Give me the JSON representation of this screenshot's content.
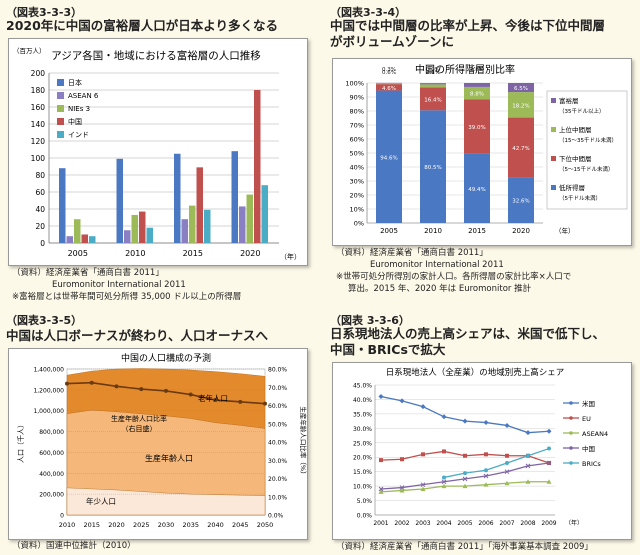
{
  "panels": {
    "p1": {
      "label": "（図表3-3-3）",
      "title": "2020年に中国の富裕層人口が日本より多くなる",
      "source": "（資料）経済産業省「通商白書 2011」",
      "source2": "Euromonitor International 2011",
      "note": "※富裕層とは世帯年間可処分所得 35,000 ドル以上の所得層"
    },
    "p2": {
      "label": "（図表3-3-4）",
      "title1": "中国では中間層の比率が上昇、今後は下位中間層",
      "title2": "がボリュームゾーンに",
      "source": "（資料）経済産業省「通商白書 2011」",
      "source2": "Euromonitor International 2011",
      "note1": "※世帯可処分所得別の家計人口。各所得層の家計比率×人口で",
      "note2": "算出。2015 年、2020 年は Euromonitor 推計"
    },
    "p3": {
      "label": "（図表3-3-5）",
      "title": "中国は人口ボーナスが終わり、人口オーナスへ",
      "source": "（資料）国連中位推計（2010）"
    },
    "p4": {
      "label": "（図表 3-3-6）",
      "title1": "日系現地法人の売上高シェアは、米国で低下し、",
      "title2": "中国・BRICsで拡大",
      "source": "（資料）経済産業省「通商白書 2011」「海外事業基本調査 2009」"
    }
  },
  "chart_data": [
    {
      "type": "bar",
      "title": "アジア各国・地域における富裕層の人口推移",
      "yunit": "（百万人）",
      "xunit": "（年）",
      "categories": [
        "2005",
        "2010",
        "2015",
        "2020"
      ],
      "ylim": [
        0,
        200
      ],
      "yticks": [
        0,
        20,
        40,
        60,
        80,
        100,
        120,
        140,
        160,
        180,
        200
      ],
      "legend_position": "top-left",
      "series": [
        {
          "name": "日本",
          "color": "#4a78c2",
          "values": [
            88,
            99,
            105,
            108
          ]
        },
        {
          "name": "ASEAN 6",
          "color": "#8b7fc4",
          "values": [
            8,
            15,
            28,
            43
          ]
        },
        {
          "name": "NIEs 3",
          "color": "#9cbb58",
          "values": [
            28,
            33,
            44,
            57
          ]
        },
        {
          "name": "中国",
          "color": "#c0504d",
          "values": [
            10,
            37,
            89,
            180
          ]
        },
        {
          "name": "インド",
          "color": "#4bacc6",
          "values": [
            8,
            18,
            39,
            68
          ]
        }
      ]
    },
    {
      "type": "bar",
      "stacked": true,
      "title": "中国の所得階層別比率",
      "xunit": "（年）",
      "categories": [
        "2005",
        "2010",
        "2015",
        "2020"
      ],
      "ylim": [
        0,
        100
      ],
      "yticks": [
        "0%",
        "10%",
        "20%",
        "30%",
        "40%",
        "50%",
        "60%",
        "70%",
        "80%",
        "90%",
        "100%"
      ],
      "series": [
        {
          "name": "低所得層",
          "sublabel": "（5千ドル未満）",
          "color": "#4a78c2",
          "values": [
            94.6,
            80.5,
            49.4,
            32.6
          ],
          "labels": [
            "94.6%",
            "80.5%",
            "49.4%",
            "32.6%"
          ]
        },
        {
          "name": "下位中間層",
          "sublabel": "（5〜15千ドル未満）",
          "color": "#c0504d",
          "values": [
            4.6,
            16.4,
            39.0,
            42.7
          ],
          "labels": [
            "4.6%",
            "16.4%",
            "39.0%",
            "42.7%"
          ]
        },
        {
          "name": "上位中間層",
          "sublabel": "（15〜35千ドル未満）",
          "color": "#9cbb58",
          "values": [
            0.6,
            2.1,
            8.8,
            18.2
          ],
          "labels": [
            "0.6%",
            "2.1%",
            "8.8%",
            "18.2%"
          ]
        },
        {
          "name": "富裕層",
          "sublabel": "（35千ドル以上）",
          "color": "#7e64a4",
          "values": [
            0.3,
            0.9,
            2.8,
            6.5
          ],
          "labels": [
            "0.3%",
            "0.9%",
            "2.8%",
            "6.5%"
          ]
        }
      ],
      "legend_position": "right"
    },
    {
      "type": "area",
      "title": "中国の人口構成の予測",
      "ylabel_left": "人口（千人）",
      "ylabel_right": "生産年齢人口比率（%）",
      "x": [
        2010,
        2015,
        2020,
        2025,
        2030,
        2035,
        2040,
        2045,
        2050
      ],
      "yticks_left": [
        "0",
        "200,000",
        "400,000",
        "600,000",
        "800,000",
        "1,000,000",
        "1,200,000",
        "1,400,000"
      ],
      "ylim_left": [
        0,
        1400000
      ],
      "yticks_right": [
        "0.0%",
        "10.0%",
        "20.0%",
        "30.0%",
        "40.0%",
        "50.0%",
        "60.0%",
        "70.0%",
        "80.0%"
      ],
      "ylim_right": [
        0,
        80
      ],
      "series": [
        {
          "name": "年少人口",
          "color": "#fce8d8",
          "values": [
            260000,
            250000,
            240000,
            225000,
            210000,
            200000,
            195000,
            190000,
            185000
          ]
        },
        {
          "name": "生産年齢人口",
          "color": "#f5b87a",
          "values": [
            971000,
            1006000,
            990000,
            970000,
            950000,
            925000,
            885000,
            860000,
            830000
          ]
        },
        {
          "name": "老年人口",
          "color": "#e38a2c",
          "values": [
            1341000,
            1380000,
            1400000,
            1405000,
            1400000,
            1390000,
            1375000,
            1355000,
            1330000
          ]
        }
      ],
      "ratio_series": {
        "name": "生産年齢人口比率",
        "sublabel": "（右目盛）",
        "color": "#6b3a10",
        "values": [
          72,
          72.5,
          70.5,
          69,
          68,
          66,
          63,
          62,
          61
        ]
      },
      "area_labels": [
        "老年人口",
        "生産年齢人口比率",
        "（右目盛）",
        "生産年齢人口",
        "年少人口"
      ]
    },
    {
      "type": "line",
      "title": "日系現地法人（全産業）の地域別売上高シェア",
      "xunit": "（年）",
      "x": [
        2001,
        2002,
        2003,
        2004,
        2005,
        2006,
        2007,
        2008,
        2009
      ],
      "ylim": [
        0,
        45
      ],
      "yticks": [
        "0.0%",
        "5.0%",
        "10.0%",
        "15.0%",
        "20.0%",
        "25.0%",
        "30.0%",
        "35.0%",
        "40.0%",
        "45.0%"
      ],
      "series": [
        {
          "name": "米国",
          "color": "#4a78c2",
          "values": [
            41.0,
            39.5,
            37.5,
            34.0,
            32.5,
            32.0,
            31.0,
            28.5,
            29.0
          ]
        },
        {
          "name": "EU",
          "color": "#c0504d",
          "values": [
            19.0,
            19.3,
            21.0,
            22.0,
            20.5,
            21.0,
            20.5,
            20.5,
            18.0
          ]
        },
        {
          "name": "ASEAN4",
          "color": "#9cbb58",
          "values": [
            8.0,
            8.5,
            9.0,
            10.0,
            10.0,
            10.5,
            11.0,
            11.5,
            11.5
          ]
        },
        {
          "name": "中国",
          "color": "#7e64a4",
          "values": [
            9.0,
            9.5,
            10.5,
            11.5,
            12.5,
            13.5,
            15.0,
            17.0,
            18.0
          ]
        },
        {
          "name": "BRICs",
          "color": "#4bacc6",
          "values": [
            null,
            null,
            null,
            13.0,
            14.5,
            15.5,
            18.0,
            20.5,
            23.0
          ]
        }
      ],
      "legend_position": "right"
    }
  ]
}
